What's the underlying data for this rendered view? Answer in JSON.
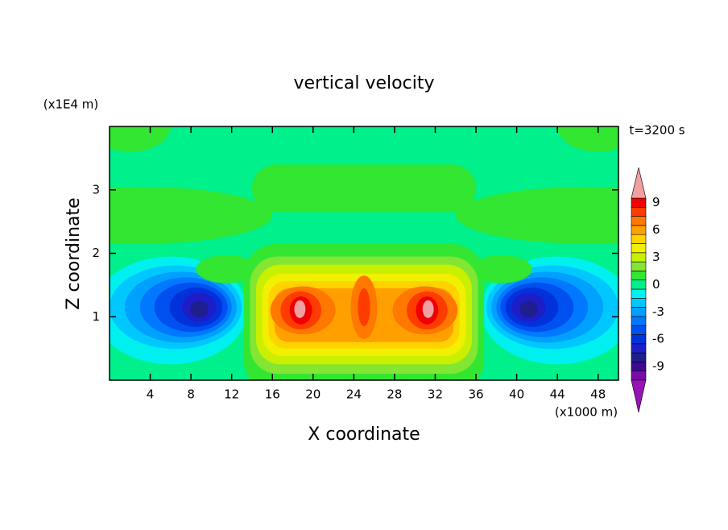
{
  "chart_data": {
    "type": "contour",
    "title": "vertical velocity",
    "xlabel": "X coordinate",
    "ylabel": "Z coordinate",
    "x_unit": "(x1000 m)",
    "y_unit": "(x1E4 m)",
    "annotation": "t=3200 s",
    "xlim": [
      0,
      50
    ],
    "xticks": [
      4,
      8,
      12,
      16,
      20,
      24,
      28,
      32,
      36,
      40,
      44,
      48
    ],
    "ylim": [
      0,
      4
    ],
    "yticks": [
      1,
      2,
      3
    ],
    "levels": [
      -10,
      -9,
      -8,
      -7,
      -6,
      -5,
      -4,
      -3,
      -2,
      -1,
      0,
      1,
      2,
      3,
      4,
      5,
      6,
      7,
      8,
      9,
      10
    ],
    "colors": [
      "#7a0aa8",
      "#3c0a96",
      "#1e1e8c",
      "#1e1ec8",
      "#0032dc",
      "#0050f0",
      "#0078ff",
      "#00a0ff",
      "#00c8ff",
      "#00f0f0",
      "#00f08c",
      "#32e632",
      "#82e632",
      "#c8f000",
      "#f0f000",
      "#ffd200",
      "#ffa000",
      "#ff7800",
      "#ff3c00",
      "#f00000"
    ],
    "extend_colors": [
      "#9614b4",
      "#f0a0a0"
    ],
    "colorbar_ticks": [
      -9,
      -6,
      -3,
      0,
      3,
      6,
      9
    ]
  }
}
